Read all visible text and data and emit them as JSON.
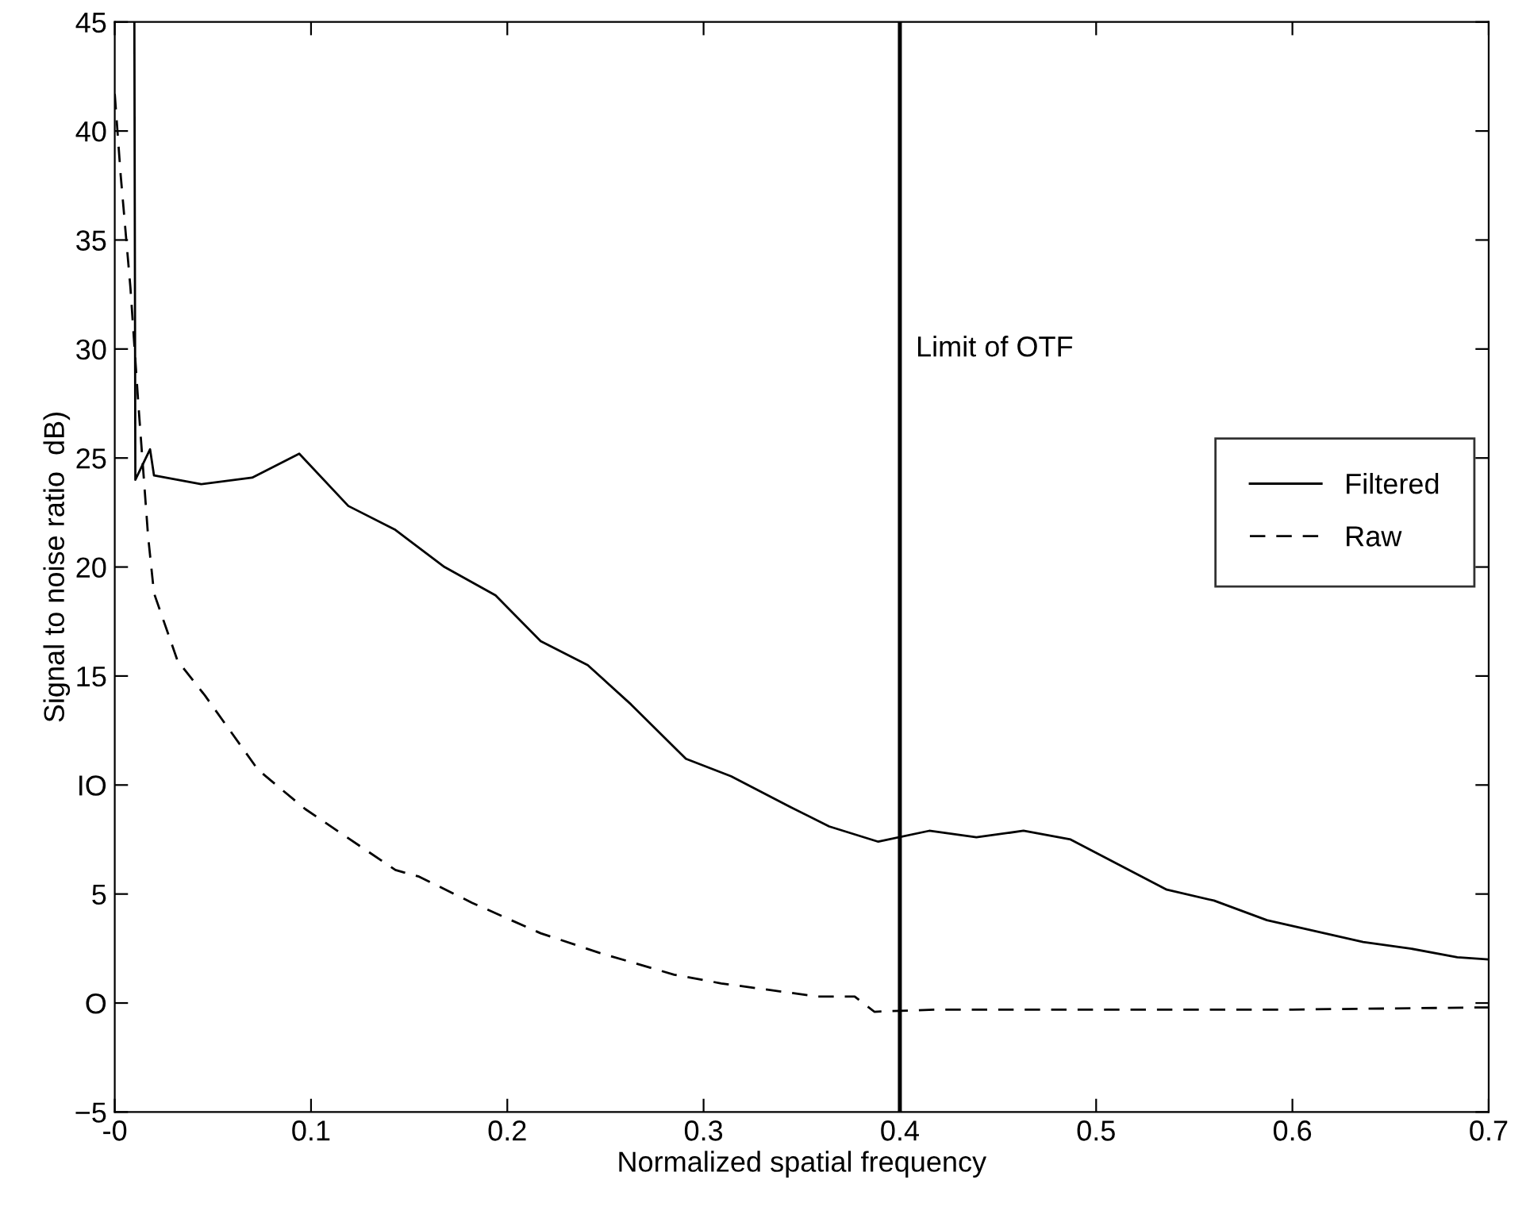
{
  "chart_data": {
    "type": "line",
    "xlabel": "Normalized spatial frequency",
    "ylabel": "Signal to noise ratio  dB)",
    "series": [
      {
        "name": "Filtered",
        "color": "#000000",
        "line_style": "solid",
        "x": [
          0.01,
          0.0105,
          0.018,
          0.02,
          0.044,
          0.07,
          0.094,
          0.119,
          0.143,
          0.168,
          0.194,
          0.217,
          0.241,
          0.263,
          0.291,
          0.314,
          0.344,
          0.364,
          0.389,
          0.415,
          0.439,
          0.463,
          0.487,
          0.536,
          0.56,
          0.587,
          0.636,
          0.66,
          0.684,
          0.7
        ],
        "values": [
          45,
          24.0,
          25.4,
          24.2,
          23.8,
          24.1,
          25.2,
          22.8,
          21.7,
          20.0,
          18.7,
          16.6,
          15.5,
          13.7,
          11.2,
          10.4,
          9.0,
          8.1,
          7.4,
          7.9,
          7.6,
          7.9,
          7.5,
          5.2,
          4.7,
          3.8,
          2.8,
          2.5,
          2.1,
          2.0
        ]
      },
      {
        "name": "Raw",
        "color": "#000000",
        "line_style": "dashed",
        "x": [
          0.0,
          0.003,
          0.008,
          0.012,
          0.017,
          0.02,
          0.032,
          0.046,
          0.073,
          0.097,
          0.143,
          0.155,
          0.182,
          0.217,
          0.247,
          0.285,
          0.309,
          0.358,
          0.377,
          0.387,
          0.419,
          0.5,
          0.6,
          0.7
        ],
        "values": [
          41.7,
          38,
          32.8,
          27.5,
          21.4,
          18.8,
          15.7,
          14.1,
          10.7,
          8.9,
          6.1,
          5.8,
          4.6,
          3.2,
          2.3,
          1.3,
          0.9,
          0.3,
          0.3,
          -0.4,
          -0.3,
          -0.3,
          -0.3,
          -0.2
        ]
      }
    ],
    "xlim": [
      0,
      0.7
    ],
    "xticks": [
      {
        "value": 0,
        "label": "-0"
      },
      0.1,
      0.2,
      0.3,
      0.4,
      0.5,
      0.6,
      0.7
    ],
    "ylim": [
      -5,
      45
    ],
    "yticks": [
      -5,
      {
        "value": 0,
        "label": "O"
      },
      5,
      {
        "value": 10,
        "label": "IO"
      },
      15,
      20,
      25,
      30,
      35,
      40,
      45
    ],
    "ref_lines": [
      {
        "axis": "x",
        "value": 0.4,
        "label": "Limit of OTF",
        "color": "#000000"
      }
    ],
    "grid": false,
    "legend": "right",
    "marker": "none"
  }
}
